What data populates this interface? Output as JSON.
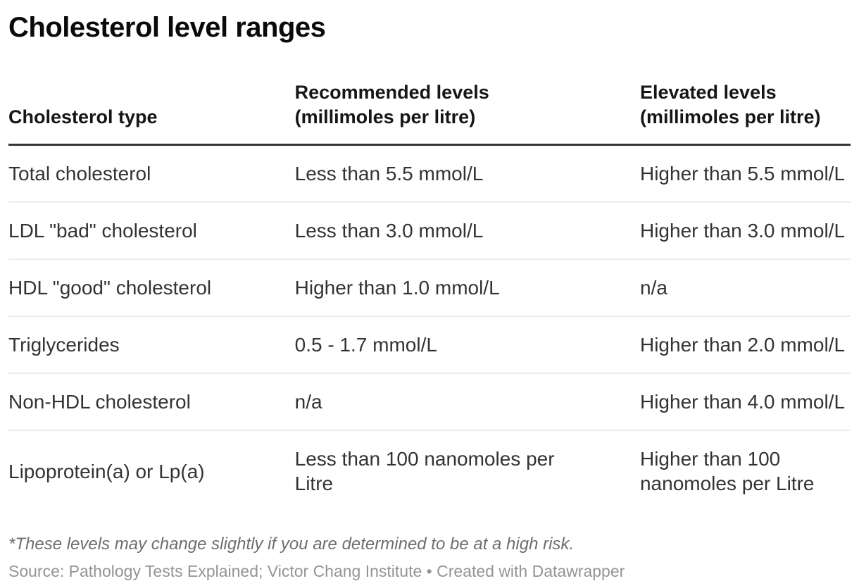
{
  "chart_data": {
    "type": "table",
    "title": "Cholesterol level ranges",
    "columns": [
      "Cholesterol type",
      "Recommended levels (millimoles per litre)",
      "Elevated levels (millimoles per litre)"
    ],
    "rows": [
      [
        "Total cholesterol",
        "Less than 5.5 mmol/L",
        "Higher than 5.5 mmol/L"
      ],
      [
        "LDL \"bad\" cholesterol",
        "Less than 3.0 mmol/L",
        "Higher than 3.0 mmol/L"
      ],
      [
        "HDL \"good\" cholesterol",
        "Higher than 1.0 mmol/L",
        "n/a"
      ],
      [
        "Triglycerides",
        "0.5 - 1.7 mmol/L",
        "Higher than 2.0 mmol/L"
      ],
      [
        "Non-HDL cholesterol",
        "n/a",
        "Higher than 4.0 mmol/L"
      ],
      [
        "Lipoprotein(a) or Lp(a)",
        "Less than 100 nanomoles per Litre",
        "Higher than 100 nanomoles per Litre"
      ]
    ],
    "footnote": "*These levels may change slightly if you are determined to be at a high risk.",
    "source": "Source: Pathology Tests Explained; Victor Chang Institute • Created with Datawrapper",
    "layout_hints": {
      "grid": "row dividers only",
      "header_rule": true,
      "legend": "none"
    }
  },
  "header_display": {
    "col1": {
      "line1": "Cholesterol type"
    },
    "col2": {
      "line1": "Recommended levels",
      "line2": "(millimoles per litre)"
    },
    "col3": {
      "line1": "Elevated levels",
      "line2": "(millimoles per litre)"
    }
  },
  "colors": {
    "title_text": "#0a0a0a",
    "header_text": "#161616",
    "body_text": "#333333",
    "header_rule": "#333333",
    "row_divider": "#ededed",
    "footnote_text": "#6e6e6e",
    "source_text": "#949494",
    "background": "#ffffff"
  }
}
